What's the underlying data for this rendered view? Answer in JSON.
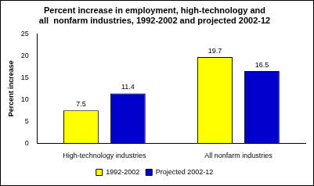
{
  "chart_data": {
    "type": "bar",
    "title": [
      "Percent increase in employment, high-technology and",
      "all  nonfarm industries, 1992-2002 and projected 2002-12"
    ],
    "categories": [
      "High-technology industries",
      "All nonfarm industries"
    ],
    "series": [
      {
        "name": "1992-2002",
        "color": "#ffff00",
        "values": [
          7.5,
          19.7
        ]
      },
      {
        "name": "Projected 2002-12",
        "color": "#0000cc",
        "values": [
          11.4,
          16.5
        ]
      }
    ],
    "y_label": "Percent increase",
    "ylim": [
      0,
      25
    ],
    "yticks": [
      0,
      5,
      10,
      15,
      20,
      25
    ],
    "grid": false,
    "legend": "bottom",
    "data_labels": true
  }
}
